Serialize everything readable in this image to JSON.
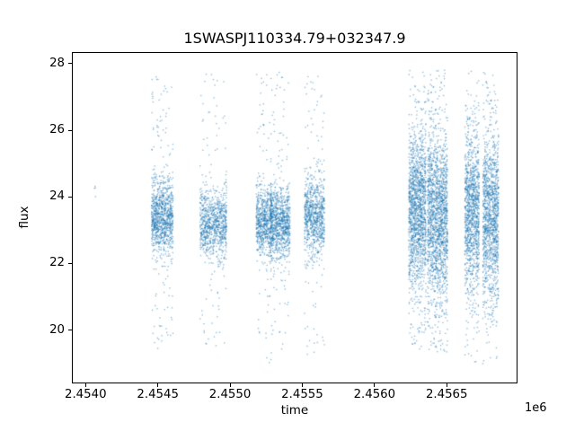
{
  "chart_data": {
    "type": "scatter",
    "title": "1SWASPJ110334.79+032347.9",
    "xlabel": "time",
    "ylabel": "flux",
    "x_offset_label": "1e6",
    "xlim": [
      2453905,
      2456990
    ],
    "ylim": [
      18.4,
      28.35
    ],
    "x_ticks": [
      2454000,
      2454500,
      2455000,
      2455500,
      2456000,
      2456500
    ],
    "x_tick_labels": [
      "2.4540",
      "2.4545",
      "2.4550",
      "2.4555",
      "2.4560",
      "2.4565"
    ],
    "y_ticks": [
      20,
      22,
      24,
      26,
      28
    ],
    "y_tick_labels": [
      "20",
      "22",
      "24",
      "26",
      "28"
    ],
    "grid": false,
    "legend": null,
    "marker_color": "#1f77b4",
    "marker_alpha": 0.5,
    "marker_size_px": 1.35,
    "clusters": [
      {
        "name": "isolated-points",
        "x_center": 2454060,
        "x_halfwidth": 10,
        "n_core": 4,
        "flux_mean": 24.2,
        "flux_sd": 0.1,
        "n_outlier": 0,
        "flux_min": 24.0,
        "flux_max": 24.4
      },
      {
        "name": "season-1",
        "x_center": 2454527,
        "x_halfwidth": 75,
        "n_core": 950,
        "flux_mean": 23.4,
        "flux_sd": 0.55,
        "n_outlier": 140,
        "flux_min": 19.2,
        "flux_max": 27.85
      },
      {
        "name": "season-2",
        "x_center": 2454882,
        "x_halfwidth": 93,
        "n_core": 850,
        "flux_mean": 23.2,
        "flux_sd": 0.5,
        "n_outlier": 110,
        "flux_min": 19.5,
        "flux_max": 27.8
      },
      {
        "name": "season-3a",
        "x_center": 2455235,
        "x_halfwidth": 55,
        "n_core": 650,
        "flux_mean": 23.3,
        "flux_sd": 0.5,
        "n_outlier": 70,
        "flux_min": 19.0,
        "flux_max": 27.8
      },
      {
        "name": "season-3b",
        "x_center": 2455345,
        "x_halfwidth": 70,
        "n_core": 900,
        "flux_mean": 23.2,
        "flux_sd": 0.55,
        "n_outlier": 90,
        "flux_min": 19.0,
        "flux_max": 27.8
      },
      {
        "name": "season-4",
        "x_center": 2455585,
        "x_halfwidth": 70,
        "n_core": 800,
        "flux_mean": 23.4,
        "flux_sd": 0.6,
        "n_outlier": 90,
        "flux_min": 19.2,
        "flux_max": 27.7
      },
      {
        "name": "season-5a",
        "x_center": 2456300,
        "x_halfwidth": 60,
        "n_core": 1400,
        "flux_mean": 23.6,
        "flux_sd": 1.2,
        "n_outlier": 160,
        "flux_min": 19.4,
        "flux_max": 27.85
      },
      {
        "name": "season-5b",
        "x_center": 2456440,
        "x_halfwidth": 70,
        "n_core": 1600,
        "flux_mean": 23.4,
        "flux_sd": 1.3,
        "n_outlier": 180,
        "flux_min": 19.3,
        "flux_max": 27.85
      },
      {
        "name": "season-6a",
        "x_center": 2456680,
        "x_halfwidth": 50,
        "n_core": 1100,
        "flux_mean": 23.5,
        "flux_sd": 1.2,
        "n_outlier": 130,
        "flux_min": 19.0,
        "flux_max": 27.8
      },
      {
        "name": "season-6b",
        "x_center": 2456810,
        "x_halfwidth": 55,
        "n_core": 1200,
        "flux_mean": 23.4,
        "flux_sd": 1.25,
        "n_outlier": 140,
        "flux_min": 18.95,
        "flux_max": 27.8
      }
    ]
  }
}
